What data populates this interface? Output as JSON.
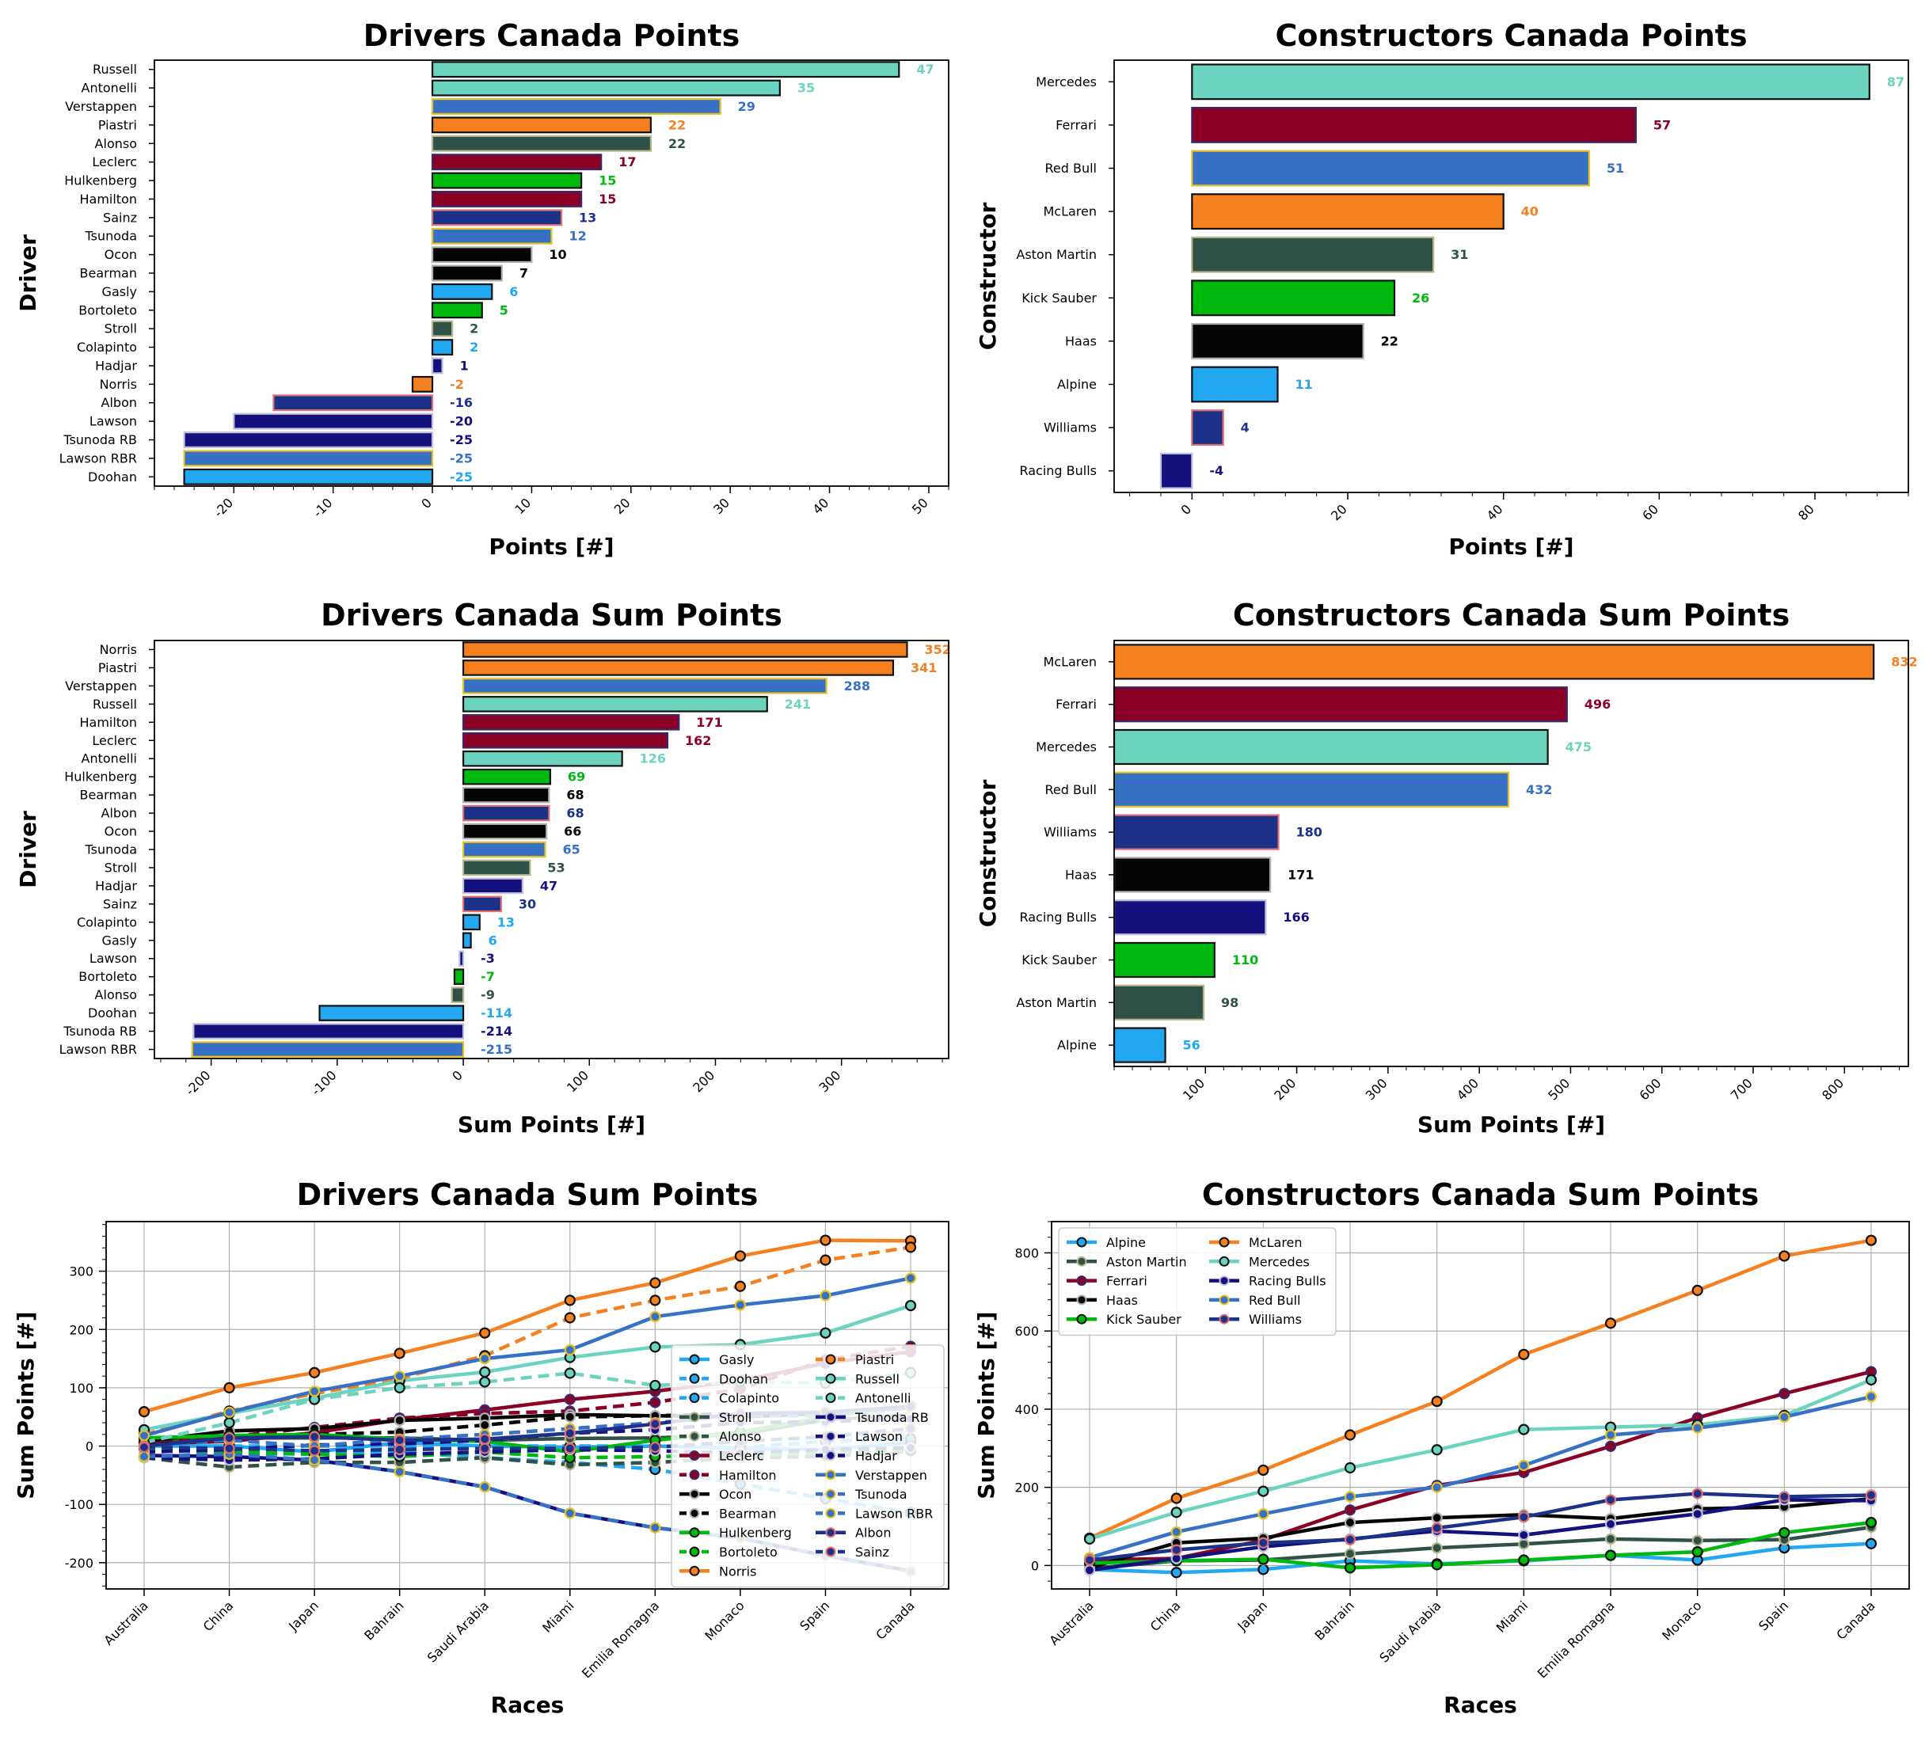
{
  "colors": {
    "Mercedes": "#6CD3BF",
    "Ferrari": "#8B0025",
    "Red Bull": "#3671C6",
    "McLaren": "#F58020",
    "Aston Martin": "#2F5148",
    "Kick Sauber": "#00B90F",
    "Haas": "#050505",
    "Alpine": "#22A7F1",
    "Williams": "#1C3288",
    "Racing Bulls": "#14107E"
  },
  "chart_data": [
    {
      "type": "bar",
      "orientation": "horizontal",
      "title": "Drivers Canada Points",
      "xlabel": "Points [#]",
      "ylabel": "Driver",
      "xlim": [
        -28,
        52
      ],
      "xticks": [
        -20,
        -10,
        0,
        10,
        20,
        30,
        40,
        50
      ],
      "categories": [
        "Russell",
        "Antonelli",
        "Verstappen",
        "Piastri",
        "Alonso",
        "Leclerc",
        "Hulkenberg",
        "Hamilton",
        "Sainz",
        "Tsunoda",
        "Ocon",
        "Bearman",
        "Gasly",
        "Bortoleto",
        "Stroll",
        "Colapinto",
        "Hadjar",
        "Norris",
        "Albon",
        "Lawson",
        "Tsunoda RB",
        "Lawson RBR",
        "Doohan"
      ],
      "values": [
        47,
        35,
        29,
        22,
        22,
        17,
        15,
        15,
        13,
        12,
        10,
        7,
        6,
        5,
        2,
        2,
        1,
        -2,
        -16,
        -20,
        -25,
        -25,
        -25
      ],
      "teams": [
        "Mercedes",
        "Mercedes",
        "Red Bull",
        "McLaren",
        "Aston Martin",
        "Ferrari",
        "Kick Sauber",
        "Ferrari",
        "Williams",
        "Red Bull",
        "Haas",
        "Haas",
        "Alpine",
        "Kick Sauber",
        "Aston Martin",
        "Alpine",
        "Racing Bulls",
        "McLaren",
        "Williams",
        "Racing Bulls",
        "Racing Bulls",
        "Red Bull",
        "Alpine"
      ],
      "value_labels": [
        "47",
        "35",
        "29",
        "22",
        "22",
        "17",
        "15",
        "15",
        "13",
        "12",
        "10",
        "7",
        "6",
        "5",
        "2",
        "2",
        "1",
        "-2",
        "-16",
        "-20",
        "-25",
        "-25",
        "-25"
      ]
    },
    {
      "type": "bar",
      "orientation": "horizontal",
      "title": "Constructors Canada Points",
      "xlabel": "Points [#]",
      "ylabel": "Constructor",
      "xlim": [
        -10,
        92
      ],
      "xticks": [
        0,
        20,
        40,
        60,
        80
      ],
      "categories": [
        "Mercedes",
        "Ferrari",
        "Red Bull",
        "McLaren",
        "Aston Martin",
        "Kick Sauber",
        "Haas",
        "Alpine",
        "Williams",
        "Racing Bulls"
      ],
      "values": [
        87,
        57,
        51,
        40,
        31,
        26,
        22,
        11,
        4,
        -4
      ],
      "teams": [
        "Mercedes",
        "Ferrari",
        "Red Bull",
        "McLaren",
        "Aston Martin",
        "Kick Sauber",
        "Haas",
        "Alpine",
        "Williams",
        "Racing Bulls"
      ],
      "value_labels": [
        "87",
        "57",
        "51",
        "40",
        "31",
        "26",
        "22",
        "11",
        "4",
        "-4"
      ]
    },
    {
      "type": "bar",
      "orientation": "horizontal",
      "title": "Drivers Canada Sum Points",
      "xlabel": "Sum Points [#]",
      "ylabel": "Driver",
      "xlim": [
        -245,
        385
      ],
      "xticks": [
        -200,
        -100,
        0,
        100,
        200,
        300
      ],
      "categories": [
        "Norris",
        "Piastri",
        "Verstappen",
        "Russell",
        "Hamilton",
        "Leclerc",
        "Antonelli",
        "Hulkenberg",
        "Bearman",
        "Albon",
        "Ocon",
        "Tsunoda",
        "Stroll",
        "Hadjar",
        "Sainz",
        "Colapinto",
        "Gasly",
        "Lawson",
        "Bortoleto",
        "Alonso",
        "Doohan",
        "Tsunoda RB",
        "Lawson RBR"
      ],
      "values": [
        352,
        341,
        288,
        241,
        171,
        162,
        126,
        69,
        68,
        68,
        66,
        65,
        53,
        47,
        30,
        13,
        6,
        -3,
        -7,
        -9,
        -114,
        -214,
        -215
      ],
      "teams": [
        "McLaren",
        "McLaren",
        "Red Bull",
        "Mercedes",
        "Ferrari",
        "Ferrari",
        "Mercedes",
        "Kick Sauber",
        "Haas",
        "Williams",
        "Haas",
        "Red Bull",
        "Aston Martin",
        "Racing Bulls",
        "Williams",
        "Alpine",
        "Alpine",
        "Racing Bulls",
        "Kick Sauber",
        "Aston Martin",
        "Alpine",
        "Racing Bulls",
        "Red Bull"
      ],
      "value_labels": [
        "352",
        "341",
        "288",
        "241",
        "171",
        "162",
        "126",
        "69",
        "68",
        "68",
        "66",
        "65",
        "53",
        "47",
        "30",
        "13",
        "6",
        "-3",
        "-7",
        "-9",
        "-114",
        "-214",
        "-215"
      ]
    },
    {
      "type": "bar",
      "orientation": "horizontal",
      "title": "Constructors Canada Sum Points",
      "xlabel": "Sum Points [#]",
      "ylabel": "Constructor",
      "xlim": [
        0,
        870
      ],
      "xticks": [
        100,
        200,
        300,
        400,
        500,
        600,
        700,
        800
      ],
      "categories": [
        "McLaren",
        "Ferrari",
        "Mercedes",
        "Red Bull",
        "Williams",
        "Haas",
        "Racing Bulls",
        "Kick Sauber",
        "Aston Martin",
        "Alpine"
      ],
      "values": [
        832,
        496,
        475,
        432,
        180,
        171,
        166,
        110,
        98,
        56
      ],
      "teams": [
        "McLaren",
        "Ferrari",
        "Mercedes",
        "Red Bull",
        "Williams",
        "Haas",
        "Racing Bulls",
        "Kick Sauber",
        "Aston Martin",
        "Alpine"
      ],
      "value_labels": [
        "832",
        "496",
        "475",
        "432",
        "180",
        "171",
        "166",
        "110",
        "98",
        "56"
      ]
    },
    {
      "type": "line",
      "title": "Drivers Canada Sum Points",
      "xlabel": "Races",
      "ylabel": "Sum Points [#]",
      "ylim": [
        -245,
        385
      ],
      "yticks": [
        -200,
        -100,
        0,
        100,
        200,
        300
      ],
      "x": [
        "Australia",
        "China",
        "Japan",
        "Bahrain",
        "Saudi Arabia",
        "Miami",
        "Emilia Romagna",
        "Monaco",
        "Spain",
        "Canada"
      ],
      "legend_columns": 2,
      "series": [
        {
          "name": "Gasly",
          "team": "Alpine",
          "dashed": false,
          "values": [
            0,
            0,
            -10,
            6,
            0,
            -2,
            0,
            -4,
            -6,
            6
          ]
        },
        {
          "name": "Doohan",
          "team": "Alpine",
          "dashed": true,
          "values": [
            -18,
            -12,
            -14,
            -10,
            -20,
            -28,
            -40,
            -65,
            -90,
            -114
          ]
        },
        {
          "name": "Colapinto",
          "team": "Alpine",
          "dashed": true,
          "values": [
            0,
            0,
            0,
            0,
            0,
            0,
            0,
            -2,
            8,
            13
          ]
        },
        {
          "name": "Stroll",
          "team": "Aston Martin",
          "dashed": false,
          "values": [
            10,
            14,
            14,
            14,
            10,
            13,
            14,
            20,
            45,
            53
          ]
        },
        {
          "name": "Alonso",
          "team": "Aston Martin",
          "dashed": true,
          "values": [
            -20,
            -36,
            -28,
            -28,
            -20,
            -32,
            -28,
            -20,
            -18,
            -9
          ]
        },
        {
          "name": "Leclerc",
          "team": "Ferrari",
          "dashed": false,
          "values": [
            4,
            8,
            23,
            45,
            62,
            80,
            94,
            112,
            142,
            162
          ]
        },
        {
          "name": "Hamilton",
          "team": "Ferrari",
          "dashed": true,
          "values": [
            10,
            16,
            32,
            48,
            56,
            60,
            75,
            98,
            148,
            171
          ]
        },
        {
          "name": "Ocon",
          "team": "Haas",
          "dashed": false,
          "values": [
            8,
            26,
            30,
            44,
            48,
            54,
            52,
            50,
            56,
            66
          ]
        },
        {
          "name": "Bearman",
          "team": "Haas",
          "dashed": true,
          "values": [
            2,
            12,
            20,
            24,
            36,
            50,
            52,
            56,
            58,
            68
          ]
        },
        {
          "name": "Hulkenberg",
          "team": "Kick Sauber",
          "dashed": false,
          "values": [
            14,
            18,
            20,
            12,
            8,
            -10,
            10,
            24,
            50,
            69
          ]
        },
        {
          "name": "Bortoleto",
          "team": "Kick Sauber",
          "dashed": true,
          "values": [
            -6,
            -10,
            -14,
            -18,
            -10,
            -20,
            -18,
            -16,
            -12,
            -7
          ]
        },
        {
          "name": "Norris",
          "team": "McLaren",
          "dashed": false,
          "values": [
            59,
            100,
            126,
            159,
            194,
            250,
            280,
            326,
            353,
            352
          ]
        },
        {
          "name": "Piastri",
          "team": "McLaren",
          "dashed": true,
          "values": [
            20,
            60,
            90,
            116,
            155,
            220,
            250,
            274,
            319,
            341
          ]
        },
        {
          "name": "Russell",
          "team": "Mercedes",
          "dashed": false,
          "values": [
            28,
            56,
            82,
            112,
            127,
            152,
            170,
            174,
            194,
            241
          ]
        },
        {
          "name": "Antonelli",
          "team": "Mercedes",
          "dashed": true,
          "values": [
            6,
            40,
            80,
            100,
            110,
            125,
            104,
            110,
            108,
            126
          ]
        },
        {
          "name": "Tsunoda RB",
          "team": "Racing Bulls",
          "dashed": false,
          "values": [
            -16,
            -18,
            -24,
            -44,
            -70,
            -115,
            -140,
            -158,
            -188,
            -214
          ]
        },
        {
          "name": "Lawson",
          "team": "Racing Bulls",
          "dashed": true,
          "values": [
            -20,
            -24,
            -22,
            -14,
            -10,
            -6,
            -8,
            -12,
            -6,
            -3
          ]
        },
        {
          "name": "Hadjar",
          "team": "Racing Bulls",
          "dashed": true,
          "values": [
            -10,
            -6,
            2,
            4,
            10,
            22,
            28,
            40,
            42,
            47
          ]
        },
        {
          "name": "Verstappen",
          "team": "Red Bull",
          "dashed": false,
          "values": [
            18,
            58,
            94,
            120,
            150,
            165,
            222,
            242,
            258,
            288
          ]
        },
        {
          "name": "Tsunoda",
          "team": "Red Bull",
          "dashed": true,
          "values": [
            0,
            10,
            0,
            12,
            20,
            30,
            40,
            52,
            52,
            65
          ]
        },
        {
          "name": "Lawson RBR",
          "team": "Red Bull",
          "dashed": true,
          "values": [
            -18,
            -14,
            -24,
            -44,
            -70,
            -115,
            -140,
            -158,
            -188,
            -215
          ]
        },
        {
          "name": "Albon",
          "team": "Williams",
          "dashed": false,
          "values": [
            0,
            14,
            16,
            10,
            12,
            22,
            38,
            56,
            58,
            68
          ]
        },
        {
          "name": "Sainz",
          "team": "Williams",
          "dashed": true,
          "values": [
            -2,
            -4,
            -8,
            -6,
            -4,
            -4,
            -2,
            8,
            16,
            30
          ]
        }
      ]
    },
    {
      "type": "line",
      "title": "Constructors Canada Sum Points",
      "xlabel": "Races",
      "ylabel": "Sum Points [#]",
      "ylim": [
        -60,
        880
      ],
      "yticks": [
        0,
        200,
        400,
        600,
        800
      ],
      "x": [
        "Australia",
        "China",
        "Japan",
        "Bahrain",
        "Saudi Arabia",
        "Miami",
        "Emilia Romagna",
        "Monaco",
        "Spain",
        "Canada"
      ],
      "legend_columns": 2,
      "series": [
        {
          "name": "Alpine",
          "team": "Alpine",
          "values": [
            -10,
            -18,
            -10,
            12,
            4,
            12,
            26,
            14,
            45,
            56
          ]
        },
        {
          "name": "Aston Martin",
          "team": "Aston Martin",
          "values": [
            -8,
            12,
            14,
            30,
            45,
            55,
            68,
            64,
            66,
            98
          ]
        },
        {
          "name": "Ferrari",
          "team": "Ferrari",
          "values": [
            14,
            18,
            65,
            142,
            205,
            238,
            305,
            378,
            440,
            496
          ]
        },
        {
          "name": "Haas",
          "team": "Haas",
          "values": [
            -6,
            58,
            70,
            110,
            122,
            130,
            120,
            145,
            150,
            171
          ]
        },
        {
          "name": "Kick Sauber",
          "team": "Kick Sauber",
          "values": [
            6,
            12,
            16,
            -6,
            2,
            14,
            26,
            35,
            84,
            110
          ]
        },
        {
          "name": "McLaren",
          "team": "McLaren",
          "values": [
            70,
            172,
            244,
            334,
            420,
            540,
            620,
            704,
            792,
            832
          ]
        },
        {
          "name": "Mercedes",
          "team": "Mercedes",
          "values": [
            68,
            136,
            190,
            250,
            296,
            348,
            354,
            360,
            384,
            475
          ]
        },
        {
          "name": "Racing Bulls",
          "team": "Racing Bulls",
          "values": [
            -12,
            18,
            48,
            68,
            88,
            78,
            106,
            132,
            168,
            166
          ]
        },
        {
          "name": "Red Bull",
          "team": "Red Bull",
          "values": [
            20,
            86,
            132,
            176,
            200,
            256,
            334,
            352,
            380,
            432
          ]
        },
        {
          "name": "Williams",
          "team": "Williams",
          "values": [
            14,
            40,
            58,
            66,
            96,
            124,
            168,
            184,
            176,
            180
          ]
        }
      ]
    }
  ]
}
